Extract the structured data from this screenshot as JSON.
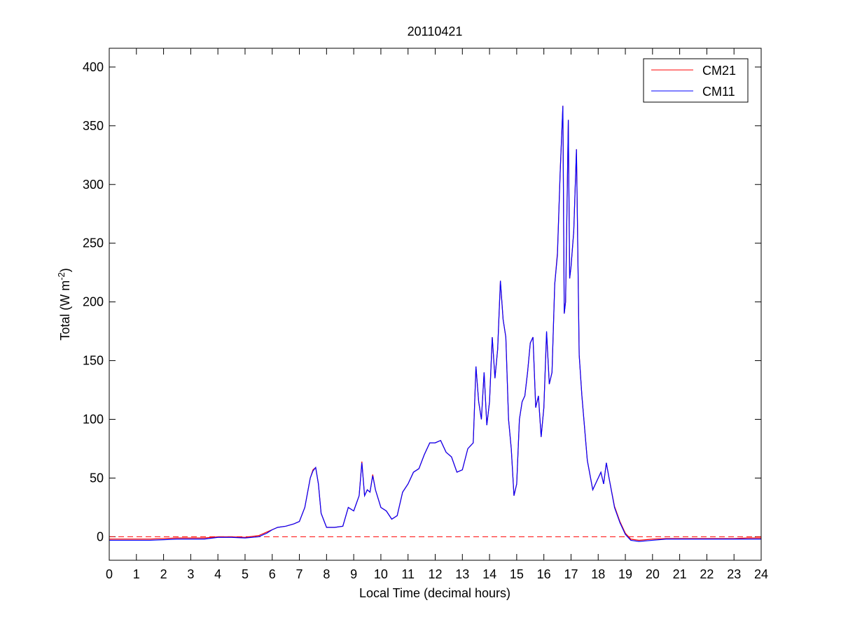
{
  "chart_data": {
    "type": "line",
    "title": "20110421",
    "xlabel": "Local Time (decimal hours)",
    "ylabel": {
      "text": "Total (W m",
      "superscript": "-2",
      "suffix": ")"
    },
    "x": [
      0,
      1,
      1.5,
      2,
      2.5,
      3,
      3.5,
      4,
      4.5,
      5,
      5.5,
      5.8,
      6,
      6.2,
      6.5,
      6.8,
      7,
      7.2,
      7.4,
      7.5,
      7.6,
      7.7,
      7.8,
      8,
      8.3,
      8.6,
      8.8,
      9,
      9.2,
      9.3,
      9.4,
      9.5,
      9.6,
      9.7,
      9.8,
      10,
      10.2,
      10.4,
      10.6,
      10.8,
      11,
      11.2,
      11.4,
      11.6,
      11.8,
      12,
      12.2,
      12.4,
      12.6,
      12.8,
      13,
      13.2,
      13.4,
      13.5,
      13.6,
      13.7,
      13.8,
      13.9,
      14,
      14.1,
      14.2,
      14.3,
      14.4,
      14.5,
      14.6,
      14.7,
      14.8,
      14.9,
      15,
      15.1,
      15.2,
      15.3,
      15.4,
      15.5,
      15.6,
      15.7,
      15.8,
      15.9,
      16,
      16.1,
      16.2,
      16.3,
      16.4,
      16.5,
      16.6,
      16.7,
      16.75,
      16.8,
      16.9,
      16.95,
      17,
      17.1,
      17.2,
      17.3,
      17.4,
      17.6,
      17.8,
      18,
      18.1,
      18.2,
      18.3,
      18.4,
      18.6,
      18.8,
      19,
      19.2,
      19.5,
      20,
      20.5,
      21,
      21.5,
      22,
      22.5,
      23,
      23.5,
      24
    ],
    "series": [
      {
        "name": "CM21",
        "color": "#ff0000",
        "values": [
          -2,
          -2,
          -2,
          -1.5,
          -1,
          -1,
          -1,
          0,
          0,
          -0.5,
          1,
          4,
          6,
          8,
          9,
          11,
          13,
          25,
          50,
          57,
          59,
          45,
          20,
          8,
          8,
          9,
          25,
          22,
          35,
          64,
          35,
          40,
          38,
          53,
          40,
          25,
          22,
          15,
          18,
          38,
          45,
          55,
          58,
          70,
          80,
          80,
          82,
          72,
          68,
          55,
          57,
          75,
          80,
          145,
          115,
          100,
          140,
          95,
          115,
          170,
          135,
          160,
          218,
          185,
          170,
          100,
          75,
          35,
          45,
          100,
          115,
          120,
          140,
          165,
          170,
          110,
          120,
          85,
          110,
          174,
          130,
          140,
          215,
          242,
          310,
          367,
          190,
          200,
          355,
          220,
          230,
          260,
          330,
          155,
          120,
          65,
          40,
          50,
          55,
          45,
          63,
          50,
          26,
          13,
          3,
          -2,
          -3,
          -2,
          -1.5,
          -1.5,
          -1.5,
          -1.5,
          -1.5,
          -1.5,
          -1,
          -1
        ]
      },
      {
        "name": "CM11",
        "color": "#0000ff",
        "values": [
          -3,
          -3,
          -3,
          -2.5,
          -2,
          -2,
          -2,
          -0.5,
          -0.5,
          -1,
          0,
          3,
          6,
          8,
          9,
          11,
          13,
          25,
          50,
          56,
          59,
          45,
          20,
          8,
          8,
          9,
          25,
          22,
          35,
          63,
          35,
          40,
          38,
          52,
          40,
          25,
          22,
          15,
          18,
          38,
          45,
          55,
          58,
          70,
          80,
          80,
          82,
          72,
          68,
          55,
          57,
          75,
          80,
          145,
          115,
          100,
          140,
          95,
          115,
          170,
          135,
          160,
          218,
          185,
          170,
          100,
          75,
          35,
          45,
          100,
          115,
          120,
          140,
          165,
          170,
          110,
          120,
          85,
          110,
          175,
          130,
          140,
          215,
          240,
          310,
          367,
          190,
          200,
          355,
          220,
          230,
          260,
          330,
          155,
          120,
          65,
          40,
          50,
          55,
          45,
          63,
          50,
          25,
          12,
          2,
          -3,
          -4,
          -3,
          -2,
          -2,
          -2,
          -2,
          -2,
          -2,
          -2,
          -2
        ]
      }
    ],
    "hline": {
      "value": 0,
      "color": "#ff0000",
      "dashed": true
    },
    "xlim": [
      0,
      24
    ],
    "xticks": [
      0,
      1,
      2,
      3,
      4,
      5,
      6,
      7,
      8,
      9,
      10,
      11,
      12,
      13,
      14,
      15,
      16,
      17,
      18,
      19,
      20,
      21,
      22,
      23,
      24
    ],
    "ylim": [
      -20,
      416
    ],
    "yticks": [
      0,
      50,
      100,
      150,
      200,
      250,
      300,
      350,
      400
    ],
    "legend": "upper right"
  }
}
